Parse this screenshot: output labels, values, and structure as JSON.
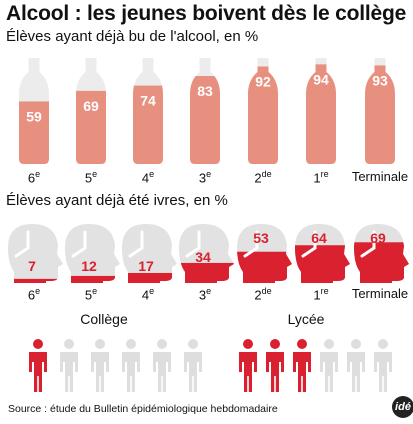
{
  "title": "Alcool : les jeunes boivent dès le collège",
  "subtitle_drink": "Élèves ayant déjà bu de l'alcool, en %",
  "subtitle_drunk": "Élèves ayant déjà été ivres, en %",
  "source": "Source : étude du Bulletin épidémiologique hebdomadaire",
  "logo": "idé",
  "groups": {
    "college": "Collège",
    "lycee": "Lycée"
  },
  "colors": {
    "bottle_full": "#e8907f",
    "bottle_empty": "#ececec",
    "head_grey": "#e2e2e2",
    "head_red": "#d9212f",
    "person_grey": "#dedede",
    "person_red": "#d9212f"
  },
  "people": {
    "college_red": 1,
    "college_total": 6,
    "lycee_red": 3,
    "lycee_total": 6
  },
  "chart_data": [
    {
      "type": "bar",
      "title": "Élèves ayant déjà bu de l'alcool, en %",
      "categories": [
        "6e",
        "5e",
        "4e",
        "3e",
        "2de",
        "1re",
        "Terminale"
      ],
      "values": [
        59,
        69,
        74,
        83,
        92,
        94,
        93
      ],
      "ylim": [
        0,
        100
      ]
    },
    {
      "type": "bar",
      "title": "Élèves ayant déjà été ivres, en %",
      "categories": [
        "6e",
        "5e",
        "4e",
        "3e",
        "2de",
        "1re",
        "Terminale"
      ],
      "values": [
        7,
        12,
        17,
        34,
        53,
        64,
        69
      ],
      "ylim": [
        0,
        100
      ]
    }
  ]
}
